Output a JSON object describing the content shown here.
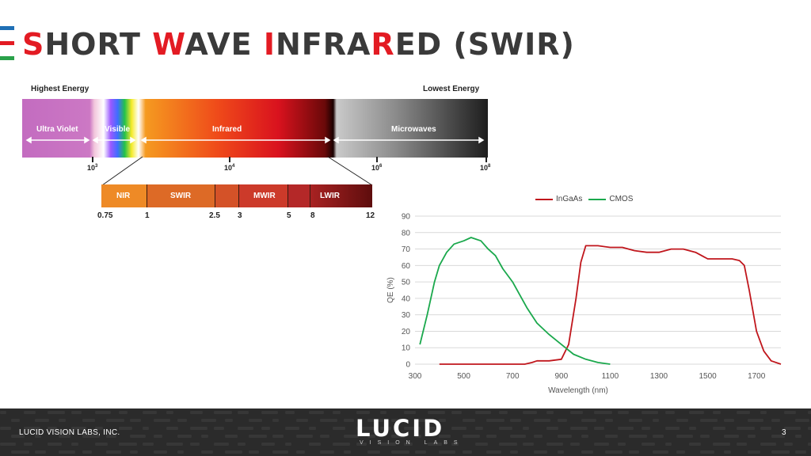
{
  "header": {
    "title_parts": [
      {
        "text": "S",
        "red": true
      },
      {
        "text": "HORT ",
        "red": false
      },
      {
        "text": "W",
        "red": true
      },
      {
        "text": "AVE ",
        "red": false
      },
      {
        "text": "I",
        "red": true
      },
      {
        "text": "NFRA",
        "red": false
      },
      {
        "text": "R",
        "red": true
      },
      {
        "text": "ED (SWIR)",
        "red": false
      }
    ],
    "accent_colors": [
      "#1f6fb5",
      "#e31b23",
      "#2aa14a"
    ]
  },
  "spectrum": {
    "highest_label": "Highest Energy",
    "lowest_label": "Lowest Energy",
    "bands": [
      "Ultra Violet",
      "Visible",
      "Infrared",
      "Microwaves"
    ],
    "exponents": [
      {
        "base": "10",
        "exp": "3"
      },
      {
        "base": "10",
        "exp": "4"
      },
      {
        "base": "10",
        "exp": "6"
      },
      {
        "base": "10",
        "exp": "8"
      }
    ]
  },
  "ir_subbands": {
    "labels": [
      "NIR",
      "SWIR",
      "MWIR",
      "LWIR"
    ],
    "wavelengths": [
      "0.75",
      "1",
      "2.5",
      "3",
      "5",
      "8",
      "12"
    ]
  },
  "chart_data": {
    "type": "line",
    "xlabel": "Wavelength (nm)",
    "ylabel": "QE (%)",
    "xlim": [
      300,
      1800
    ],
    "ylim": [
      0,
      90
    ],
    "x_ticks": [
      300,
      500,
      700,
      900,
      1100,
      1300,
      1500,
      1700
    ],
    "y_ticks": [
      0,
      10,
      20,
      30,
      40,
      50,
      60,
      70,
      80,
      90
    ],
    "grid": true,
    "legend_position": "top",
    "series": [
      {
        "name": "InGaAs",
        "color": "#c0161c",
        "x": [
          400,
          500,
          600,
          700,
          750,
          780,
          800,
          850,
          900,
          930,
          960,
          980,
          1000,
          1050,
          1100,
          1150,
          1200,
          1250,
          1300,
          1350,
          1400,
          1450,
          1500,
          1550,
          1600,
          1630,
          1650,
          1670,
          1700,
          1730,
          1760,
          1800
        ],
        "y": [
          0,
          0,
          0,
          0,
          0,
          1,
          2,
          2,
          3,
          12,
          40,
          62,
          72,
          72,
          71,
          71,
          69,
          68,
          68,
          70,
          70,
          68,
          64,
          64,
          64,
          63,
          60,
          45,
          20,
          8,
          2,
          0
        ]
      },
      {
        "name": "CMOS",
        "color": "#1aa84c",
        "x": [
          320,
          350,
          380,
          400,
          430,
          460,
          500,
          530,
          550,
          570,
          600,
          630,
          660,
          700,
          730,
          760,
          800,
          850,
          900,
          950,
          1000,
          1050,
          1100
        ],
        "y": [
          12,
          30,
          50,
          60,
          68,
          73,
          75,
          77,
          76,
          75,
          70,
          66,
          58,
          50,
          42,
          34,
          25,
          18,
          12,
          6,
          3,
          1,
          0
        ]
      }
    ]
  },
  "footer": {
    "company": "LUCID VISION LABS, INC.",
    "logo_main": "LUCID",
    "logo_sub": "VISION LABS",
    "page_number": "3"
  }
}
